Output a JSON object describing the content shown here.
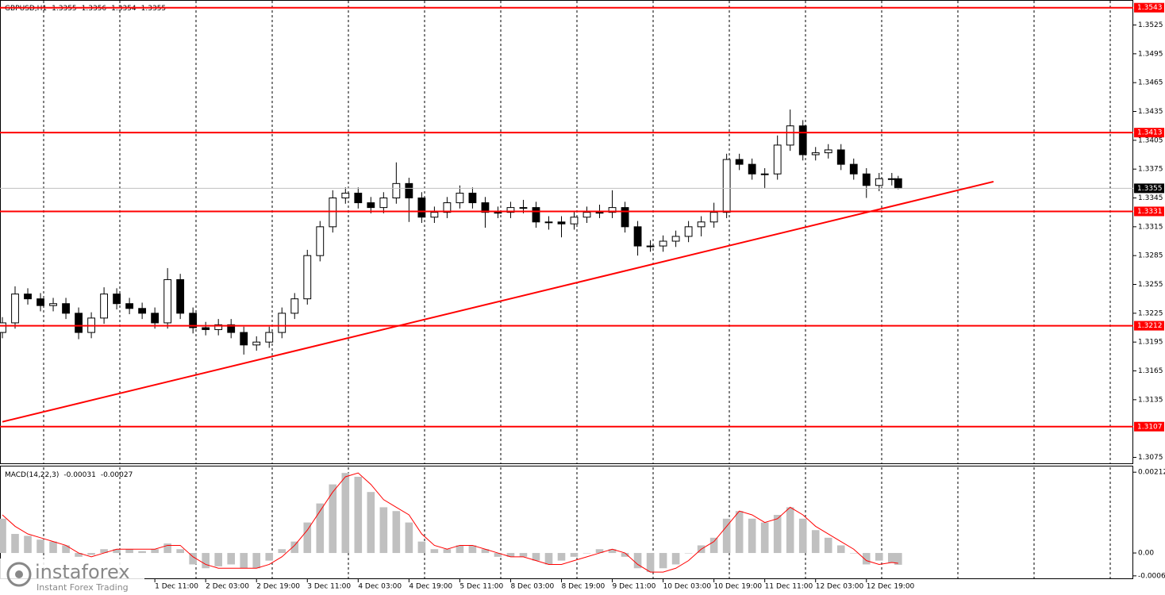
{
  "chart_data": [
    {
      "type": "candlestick",
      "title": "GBPUSD,H1",
      "title_values": [
        1.3355,
        1.3356,
        1.3354,
        1.3355
      ],
      "x": [
        0,
        4,
        8,
        12,
        16,
        20,
        24,
        28,
        32,
        36,
        40,
        44,
        48,
        52,
        56,
        60,
        64,
        68,
        72,
        76,
        80,
        84,
        88,
        92,
        96,
        100,
        104,
        108,
        112,
        116,
        120,
        124,
        128,
        132,
        136,
        140,
        144,
        148,
        152,
        156,
        160,
        164,
        168,
        172,
        176,
        180,
        184,
        188,
        192,
        196,
        200,
        204,
        208,
        212,
        216,
        220,
        224,
        228,
        232,
        236,
        240,
        244,
        248,
        252,
        256,
        260,
        264,
        268,
        272,
        276,
        280,
        282
      ],
      "open": [
        1.3205,
        1.3215,
        1.3245,
        1.324,
        1.3233,
        1.3235,
        1.3225,
        1.3205,
        1.322,
        1.3245,
        1.3235,
        1.323,
        1.3225,
        1.3215,
        1.326,
        1.3225,
        1.321,
        1.3208,
        1.3213,
        1.3205,
        1.3192,
        1.3195,
        1.3205,
        1.3225,
        1.324,
        1.3285,
        1.3315,
        1.3345,
        1.335,
        1.334,
        1.3335,
        1.3345,
        1.336,
        1.3345,
        1.3325,
        1.333,
        1.334,
        1.335,
        1.334,
        1.333,
        1.333,
        1.3335,
        1.3335,
        1.332,
        1.332,
        1.3318,
        1.3325,
        1.333,
        1.333,
        1.3335,
        1.3315,
        1.3295,
        1.3295,
        1.33,
        1.3305,
        1.3315,
        1.332,
        1.333,
        1.3385,
        1.338,
        1.337,
        1.337,
        1.34,
        1.342,
        1.339,
        1.3392,
        1.3395,
        1.338,
        1.337,
        1.3358,
        1.3365,
        1.3365
      ],
      "high": [
        1.3221,
        1.3253,
        1.3251,
        1.3246,
        1.3241,
        1.3241,
        1.3231,
        1.3226,
        1.3252,
        1.3251,
        1.3241,
        1.3236,
        1.3231,
        1.3272,
        1.3266,
        1.3231,
        1.3216,
        1.3219,
        1.3219,
        1.3211,
        1.3201,
        1.3211,
        1.3231,
        1.3246,
        1.3291,
        1.3321,
        1.3353,
        1.3356,
        1.3356,
        1.3346,
        1.3351,
        1.3382,
        1.3366,
        1.3351,
        1.3336,
        1.3346,
        1.3358,
        1.3356,
        1.3346,
        1.3336,
        1.3341,
        1.3343,
        1.3341,
        1.3326,
        1.3326,
        1.3331,
        1.3336,
        1.3338,
        1.3353,
        1.3341,
        1.3321,
        1.3301,
        1.3306,
        1.3311,
        1.3321,
        1.3326,
        1.334,
        1.3391,
        1.3391,
        1.3386,
        1.3376,
        1.341,
        1.3437,
        1.3426,
        1.3398,
        1.3401,
        1.3401,
        1.3386,
        1.3376,
        1.3371,
        1.3371,
        1.3368
      ],
      "low": [
        1.3199,
        1.3209,
        1.3234,
        1.3227,
        1.3227,
        1.3219,
        1.3198,
        1.3199,
        1.3214,
        1.3229,
        1.3224,
        1.3219,
        1.3209,
        1.3209,
        1.3219,
        1.3204,
        1.3202,
        1.3202,
        1.3199,
        1.3182,
        1.3186,
        1.3189,
        1.3199,
        1.3219,
        1.3234,
        1.3279,
        1.3309,
        1.3339,
        1.3334,
        1.3329,
        1.3329,
        1.3339,
        1.332,
        1.3319,
        1.3319,
        1.3324,
        1.3334,
        1.3334,
        1.3314,
        1.3324,
        1.3324,
        1.3329,
        1.3314,
        1.3312,
        1.3304,
        1.3312,
        1.3319,
        1.3324,
        1.3324,
        1.3309,
        1.3285,
        1.3289,
        1.3289,
        1.3294,
        1.3299,
        1.3305,
        1.3314,
        1.3324,
        1.3374,
        1.3364,
        1.3355,
        1.3364,
        1.3394,
        1.3384,
        1.3384,
        1.3386,
        1.3374,
        1.3364,
        1.3345,
        1.3352,
        1.3358,
        1.3354
      ],
      "close": [
        1.3215,
        1.3245,
        1.324,
        1.3233,
        1.3235,
        1.3225,
        1.3205,
        1.322,
        1.3245,
        1.3235,
        1.323,
        1.3225,
        1.3215,
        1.326,
        1.3225,
        1.321,
        1.3208,
        1.3213,
        1.3205,
        1.3192,
        1.3195,
        1.3205,
        1.3225,
        1.324,
        1.3285,
        1.3315,
        1.3345,
        1.335,
        1.334,
        1.3335,
        1.3345,
        1.336,
        1.3345,
        1.3325,
        1.333,
        1.334,
        1.335,
        1.334,
        1.333,
        1.333,
        1.3335,
        1.3335,
        1.332,
        1.332,
        1.3318,
        1.3325,
        1.333,
        1.333,
        1.3335,
        1.3315,
        1.3295,
        1.3295,
        1.33,
        1.3305,
        1.3315,
        1.332,
        1.333,
        1.3385,
        1.338,
        1.337,
        1.337,
        1.34,
        1.342,
        1.339,
        1.3392,
        1.3395,
        1.338,
        1.337,
        1.3358,
        1.3365,
        1.3365,
        1.3355
      ],
      "xlim": [
        0,
        356
      ],
      "ylim": [
        1.3068,
        1.3551
      ],
      "yticks": [
        1.3525,
        1.3495,
        1.3465,
        1.3435,
        1.3405,
        1.3375,
        1.3345,
        1.3315,
        1.3285,
        1.3255,
        1.3225,
        1.3195,
        1.3165,
        1.3135,
        1.3075
      ],
      "levels": [
        1.3543,
        1.3413,
        1.3331,
        1.3212,
        1.3107
      ],
      "level_color": "#ff0000",
      "current_price": 1.3355,
      "trendline": {
        "x": [
          0,
          312
        ],
        "y": [
          1.3112,
          1.3362
        ]
      }
    },
    {
      "type": "macd",
      "title": "MACD(14,22,3)",
      "title_values": [
        -0.00031,
        -0.00027
      ],
      "x": [
        0,
        4,
        8,
        12,
        16,
        20,
        24,
        28,
        32,
        36,
        40,
        44,
        48,
        52,
        56,
        60,
        64,
        68,
        72,
        76,
        80,
        84,
        88,
        92,
        96,
        100,
        104,
        108,
        112,
        116,
        120,
        124,
        128,
        132,
        136,
        140,
        144,
        148,
        152,
        156,
        160,
        164,
        168,
        172,
        176,
        180,
        184,
        188,
        192,
        196,
        200,
        204,
        208,
        212,
        216,
        220,
        224,
        228,
        232,
        236,
        240,
        244,
        248,
        252,
        256,
        260,
        264,
        268,
        272,
        276,
        280,
        282
      ],
      "series": [
        {
          "name": "MACD",
          "color": "#c0c0c0",
          "values": [
            0.0009,
            0.0005,
            0.00045,
            0.00035,
            0.0003,
            0.0002,
            -0.0001,
            -5e-05,
            0.0001,
            0.0001,
            0.0001,
            5e-05,
            0.0001,
            0.00025,
            0.0001,
            -0.0003,
            -0.0004,
            -0.00035,
            -0.0003,
            -0.0004,
            -0.0004,
            -0.0002,
            0.0001,
            0.0003,
            0.0008,
            0.0013,
            0.0018,
            0.0021,
            0.002,
            0.0016,
            0.0012,
            0.0011,
            0.0008,
            0.0003,
            0.0001,
            0.0001,
            0.0002,
            0.0002,
            0.0001,
            -0.0001,
            -0.0001,
            -0.0001,
            -0.0002,
            -0.0003,
            -0.0002,
            -0.0001,
            0,
            0.0001,
            0.0001,
            -0.0001,
            -0.0004,
            -0.0005,
            -0.0004,
            -0.0003,
            0,
            0.0002,
            0.0004,
            0.0009,
            0.0011,
            0.0009,
            0.0008,
            0.001,
            0.0012,
            0.0009,
            0.0006,
            0.0004,
            0.0002,
            0,
            -0.0003,
            -0.0002,
            -0.00025,
            -0.00031
          ]
        },
        {
          "name": "Signal",
          "color": "#ff0000",
          "values": [
            0.001,
            0.0007,
            0.0005,
            0.0004,
            0.0003,
            0.0002,
            0,
            -0.0001,
            0,
            0.0001,
            0.0001,
            0.0001,
            0.0001,
            0.0002,
            0.0002,
            -0.0001,
            -0.0003,
            -0.0004,
            -0.0004,
            -0.0004,
            -0.0004,
            -0.0003,
            -0.0001,
            0.0002,
            0.0006,
            0.0011,
            0.0016,
            0.002,
            0.0021,
            0.0018,
            0.0014,
            0.0012,
            0.001,
            0.0005,
            0.0002,
            0.0001,
            0.0002,
            0.0002,
            0.0001,
            0,
            -0.0001,
            -0.0001,
            -0.0002,
            -0.0003,
            -0.0003,
            -0.0002,
            -0.0001,
            0,
            0.0001,
            0,
            -0.0003,
            -0.0005,
            -0.0005,
            -0.0004,
            -0.0002,
            0.0001,
            0.0003,
            0.0007,
            0.0011,
            0.001,
            0.0008,
            0.0009,
            0.0012,
            0.001,
            0.0007,
            0.0005,
            0.0003,
            0.0001,
            -0.0002,
            -0.0003,
            -0.00025,
            -0.00027
          ]
        }
      ],
      "xlim": [
        0,
        356
      ],
      "ylim": [
        -0.000686,
        0.00227
      ],
      "yticks": [
        0.00212,
        {
          "value": 0,
          "label": "0.00"
        },
        -0.0006
      ],
      "xticks": [
        {
          "value": 48,
          "label": "1 Dec 11:00"
        },
        {
          "value": 64,
          "label": "2 Dec 03:00"
        },
        {
          "value": 80,
          "label": "2 Dec 19:00"
        },
        {
          "value": 96,
          "label": "3 Dec 11:00"
        },
        {
          "value": 112,
          "label": "4 Dec 03:00"
        },
        {
          "value": 128,
          "label": "4 Dec 19:00"
        },
        {
          "value": 144,
          "label": "5 Dec 11:00"
        },
        {
          "value": 160,
          "label": "8 Dec 03:00"
        },
        {
          "value": 176,
          "label": "8 Dec 19:00"
        },
        {
          "value": 192,
          "label": "9 Dec 11:00"
        },
        {
          "value": 208,
          "label": "10 Dec 03:00"
        },
        {
          "value": 224,
          "label": "10 Dec 19:00"
        },
        {
          "value": 240,
          "label": "11 Dec 11:00"
        },
        {
          "value": 256,
          "label": "12 Dec 03:00"
        },
        {
          "value": 272,
          "label": "12 Dec 19:00"
        }
      ]
    }
  ],
  "watermark": {
    "name": "instaforex",
    "tagline": "Instant Forex Trading"
  }
}
